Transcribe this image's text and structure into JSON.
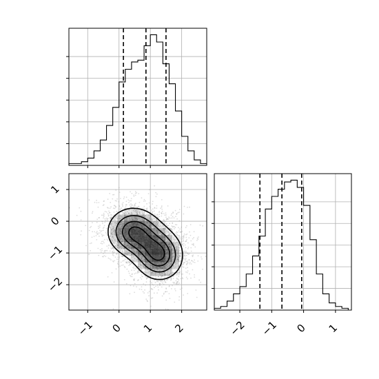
{
  "chart_data": [
    {
      "type": "histogram",
      "panel": "top-left",
      "variable": "param_1",
      "bin_edges": [
        -1.6,
        -1.4,
        -1.2,
        -1.0,
        -0.8,
        -0.6,
        -0.4,
        -0.2,
        0.0,
        0.2,
        0.4,
        0.6,
        0.8,
        1.0,
        1.2,
        1.4,
        1.6,
        1.8,
        2.0,
        2.2,
        2.4,
        2.6,
        2.8
      ],
      "counts": [
        1,
        1,
        2,
        4,
        8,
        14,
        22,
        32,
        46,
        53,
        57,
        58,
        66,
        72,
        68,
        56,
        45,
        30,
        16,
        8,
        3,
        1
      ],
      "quantiles": [
        0.14,
        0.86,
        1.5
      ],
      "xlim": [
        -1.6,
        2.8
      ],
      "grid": true
    },
    {
      "type": "histogram",
      "panel": "bottom-right",
      "variable": "param_2",
      "bin_edges": [
        -2.8,
        -2.6,
        -2.4,
        -2.2,
        -2.0,
        -1.8,
        -1.6,
        -1.4,
        -1.2,
        -1.0,
        -0.8,
        -0.6,
        -0.4,
        -0.2,
        0.0,
        0.2,
        0.4,
        0.6,
        0.8,
        1.0,
        1.2,
        1.4
      ],
      "counts": [
        1,
        2,
        5,
        9,
        13,
        20,
        30,
        41,
        56,
        63,
        67,
        71,
        72,
        68,
        58,
        39,
        20,
        9,
        4,
        2,
        1
      ],
      "quantiles": [
        -1.37,
        -0.68,
        -0.06
      ],
      "xlim": [
        -2.8,
        1.5
      ],
      "xticks": [
        "−2",
        "−1",
        "0",
        "1"
      ],
      "grid": true
    },
    {
      "type": "2d-density",
      "panel": "bottom-left",
      "x_variable": "param_1",
      "y_variable": "param_2",
      "xlim": [
        -1.6,
        2.8
      ],
      "ylim": [
        -2.8,
        1.5
      ],
      "xticks": [
        "−1",
        "0",
        "1",
        "2"
      ],
      "yticks": [
        "1",
        "0",
        "−1",
        "−2"
      ],
      "components": [
        {
          "mean": [
            0.45,
            -0.32
          ],
          "sd": [
            0.55,
            0.5
          ]
        },
        {
          "mean": [
            1.3,
            -1.08
          ],
          "sd": [
            0.5,
            0.52
          ]
        }
      ],
      "contour_levels": [
        "0.5σ",
        "1σ",
        "1.5σ",
        "2σ"
      ],
      "grid": true
    }
  ]
}
